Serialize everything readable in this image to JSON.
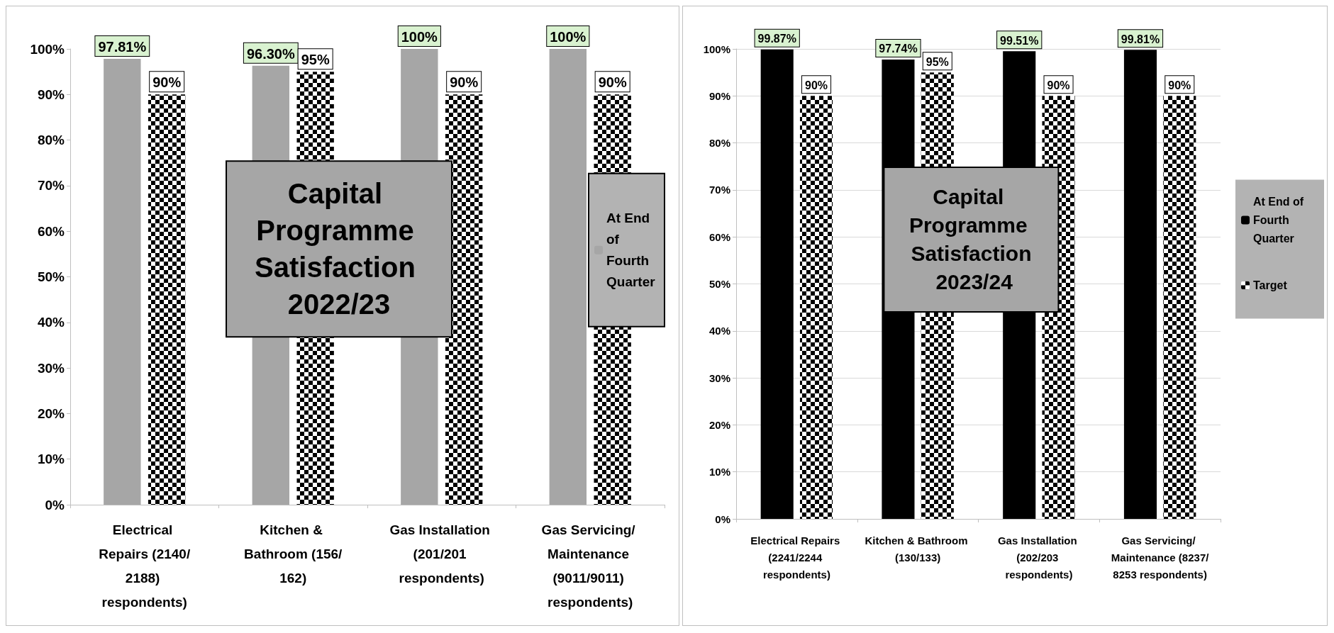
{
  "chart_data": [
    {
      "type": "bar",
      "title": "Capital Programme Satisfaction 2022/23",
      "categories": [
        "Electrical Repairs (2140/2188) respondents)",
        "Kitchen & Bathroom (156/162)",
        "Gas Installation (201/201 respondents)",
        "Gas Servicing/ Maintenance (9011/9011) respondents)"
      ],
      "series": [
        {
          "name": "At End of Fourth Quarter",
          "color": "#a6a6a6",
          "values": [
            97.81,
            96.3,
            100,
            100
          ],
          "value_labels": [
            "97.81%",
            "96.30%",
            "100%",
            "100%"
          ]
        },
        {
          "color": "#000000",
          "values": [
            90,
            95,
            90,
            90
          ],
          "value_labels": [
            "90%",
            "95%",
            "90%",
            "90%"
          ]
        }
      ],
      "ylim": [
        0,
        100
      ],
      "yticks": [
        {
          "value": 0,
          "label": "0%"
        },
        {
          "value": 10,
          "label": "10%"
        },
        {
          "value": 20,
          "label": "20%"
        },
        {
          "value": 30,
          "label": "30%"
        },
        {
          "value": 40,
          "label": "40%"
        },
        {
          "value": 50,
          "label": "50%"
        },
        {
          "value": 60,
          "label": "60%"
        },
        {
          "value": 70,
          "label": "70%"
        },
        {
          "value": 80,
          "label": "80%"
        },
        {
          "value": 90,
          "label": "90%"
        },
        {
          "value": 100,
          "label": "100%"
        }
      ],
      "grid": false,
      "legend": "right"
    },
    {
      "type": "bar",
      "title": "Capital Programme Satisfaction 2023/24",
      "categories": [
        "Electrical Repairs (2241/2244 respondents)",
        "Kitchen & Bathroom (130/133)",
        "Gas Installation (202/203 respondents)",
        "Gas Servicing/ Maintenance (8237/8253 respondents)"
      ],
      "series": [
        {
          "name": "At End of Fourth Quarter",
          "color": "#000000",
          "values": [
            99.87,
            97.74,
            99.51,
            99.81
          ],
          "value_labels": [
            "99.87%",
            "97.74%",
            "99.51%",
            "99.81%"
          ]
        },
        {
          "name": "Target",
          "color": "#000000",
          "values": [
            90,
            95,
            90,
            90
          ],
          "value_labels": [
            "90%",
            "95%",
            "90%",
            "90%"
          ]
        }
      ],
      "ylim": [
        0,
        100
      ],
      "yticks": [
        {
          "value": 0,
          "label": "0%"
        },
        {
          "value": 10,
          "label": "10%"
        },
        {
          "value": 20,
          "label": "20%"
        },
        {
          "value": 30,
          "label": "30%"
        },
        {
          "value": 40,
          "label": "40%"
        },
        {
          "value": 50,
          "label": "50%"
        },
        {
          "value": 60,
          "label": "60%"
        },
        {
          "value": 70,
          "label": "70%"
        },
        {
          "value": 80,
          "label": "80%"
        },
        {
          "value": 90,
          "label": "90%"
        },
        {
          "value": 100,
          "label": "100%"
        }
      ],
      "grid": "y",
      "legend": "right"
    }
  ]
}
